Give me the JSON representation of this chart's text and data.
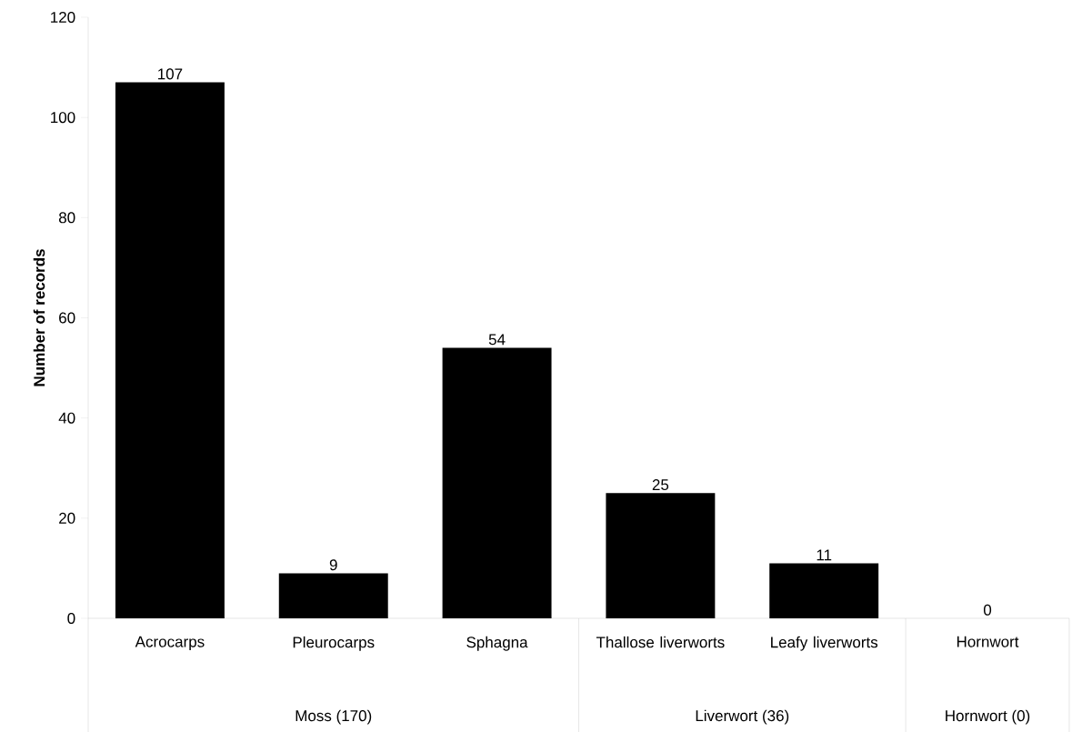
{
  "chart_data": {
    "type": "bar",
    "ylabel": "Number of records",
    "categories": [
      "Acrocarps",
      "Pleurocarps",
      "Sphagna",
      "Thallose liverworts",
      "Leafy liverworts",
      "Hornwort"
    ],
    "values": [
      107,
      9,
      54,
      25,
      11,
      0
    ],
    "color": "#000000",
    "ylim": [
      0,
      120
    ],
    "yticks": [
      0,
      20,
      40,
      60,
      80,
      100,
      120
    ],
    "data_labels": true,
    "grid": false,
    "annotations": [
      "Moss (170)",
      "Liverwort (36)",
      "Hornwort (0)"
    ]
  }
}
